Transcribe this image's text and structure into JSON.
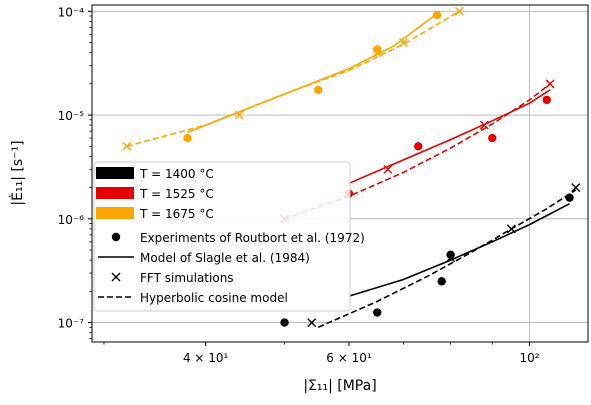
{
  "chart_data": {
    "type": "scatter",
    "x_scale": "log",
    "y_scale": "log",
    "xlim": [
      29,
      118
    ],
    "ylim": [
      6.5e-08,
      0.000115
    ],
    "xlabel": "|Σ̄₁₁| [MPa]",
    "ylabel": "|Ė₁₁| [s⁻¹]",
    "x_ticks": [
      {
        "value": 40,
        "label": "4 × 10¹"
      },
      {
        "value": 60,
        "label": "6 × 10¹"
      },
      {
        "value": 100,
        "label": "10²"
      }
    ],
    "y_ticks": [
      {
        "value": 1e-07,
        "label": "10⁻⁷"
      },
      {
        "value": 1e-06,
        "label": "10⁻⁶"
      },
      {
        "value": 1e-05,
        "label": "10⁻⁵"
      },
      {
        "value": 0.0001,
        "label": "10⁻⁴"
      }
    ],
    "grid": {
      "x_values": [
        100
      ],
      "y_values": [
        1e-07,
        1e-06,
        1e-05,
        0.0001
      ]
    },
    "legend_position": "lower-left",
    "legend": {
      "temperatures": [
        {
          "label": "T = 1400 °C",
          "color": "#000000"
        },
        {
          "label": "T = 1525 °C",
          "color": "#e80000"
        },
        {
          "label": "T = 1675 °C",
          "color": "#ffa500"
        }
      ],
      "markers": [
        {
          "label": "Experiments of Routbort et al. (1972)",
          "style": "dot"
        },
        {
          "label": "Model of Slagle et al. (1984)",
          "style": "solid"
        },
        {
          "label": "FFT simulations",
          "style": "cross"
        },
        {
          "label": "Hyperbolic cosine model",
          "style": "dashed"
        }
      ]
    },
    "series": [
      {
        "temperature": "1400 °C",
        "color": "#000000",
        "experiments": [
          [
            50,
            1e-07
          ],
          [
            65,
            1.25e-07
          ],
          [
            78,
            2.5e-07
          ],
          [
            80,
            4.5e-07
          ],
          [
            112,
            1.6e-06
          ]
        ],
        "slagle_model": [
          [
            60,
            1.8e-07
          ],
          [
            70,
            2.6e-07
          ],
          [
            80,
            4e-07
          ],
          [
            90,
            6e-07
          ],
          [
            100,
            8.8e-07
          ],
          [
            112,
            1.4e-06
          ]
        ],
        "fft": [
          [
            54,
            1e-07
          ],
          [
            80,
            4.2e-07
          ],
          [
            95,
            8e-07
          ],
          [
            114,
            2e-06
          ]
        ],
        "hyperbolic_cosine": [
          [
            55,
            9e-08
          ],
          [
            65,
            1.6e-07
          ],
          [
            75,
            2.8e-07
          ],
          [
            85,
            4.8e-07
          ],
          [
            95,
            8e-07
          ],
          [
            105,
            1.25e-06
          ],
          [
            114,
            1.9e-06
          ]
        ]
      },
      {
        "temperature": "1525 °C",
        "color": "#e80000",
        "experiments": [
          [
            60,
            1.75e-06
          ],
          [
            73,
            5e-06
          ],
          [
            90,
            6e-06
          ],
          [
            105,
            1.4e-05
          ]
        ],
        "slagle_model": [
          [
            60,
            2.2e-06
          ],
          [
            70,
            3.7e-06
          ],
          [
            80,
            5.8e-06
          ],
          [
            90,
            8.8e-06
          ],
          [
            100,
            1.3e-05
          ],
          [
            106,
            1.75e-05
          ]
        ],
        "fft": [
          [
            50,
            1e-06
          ],
          [
            67,
            3e-06
          ],
          [
            88,
            8e-06
          ],
          [
            106,
            2e-05
          ]
        ],
        "hyperbolic_cosine": [
          [
            50,
            1e-06
          ],
          [
            60,
            1.65e-06
          ],
          [
            70,
            2.8e-06
          ],
          [
            80,
            4.8e-06
          ],
          [
            90,
            8.2e-06
          ],
          [
            100,
            1.4e-05
          ],
          [
            106,
            2e-05
          ]
        ]
      },
      {
        "temperature": "1675 °C",
        "color": "#ffa500",
        "experiments": [
          [
            38,
            6e-06
          ],
          [
            55,
            1.75e-05
          ],
          [
            65,
            4.3e-05
          ],
          [
            77,
            9.2e-05
          ]
        ],
        "slagle_model": [
          [
            38,
            6.8e-06
          ],
          [
            45,
            1.15e-05
          ],
          [
            52,
            1.8e-05
          ],
          [
            60,
            2.8e-05
          ],
          [
            68,
            4.6e-05
          ],
          [
            77,
            9.5e-05
          ]
        ],
        "fft": [
          [
            32,
            5e-06
          ],
          [
            44,
            1e-05
          ],
          [
            65,
            4e-05
          ],
          [
            70,
            5e-05
          ],
          [
            82,
            0.0001
          ]
        ],
        "hyperbolic_cosine": [
          [
            32,
            5e-06
          ],
          [
            40,
            8e-06
          ],
          [
            50,
            1.6e-05
          ],
          [
            60,
            2.7e-05
          ],
          [
            70,
            4.8e-05
          ],
          [
            82,
            0.0001
          ]
        ]
      }
    ]
  }
}
